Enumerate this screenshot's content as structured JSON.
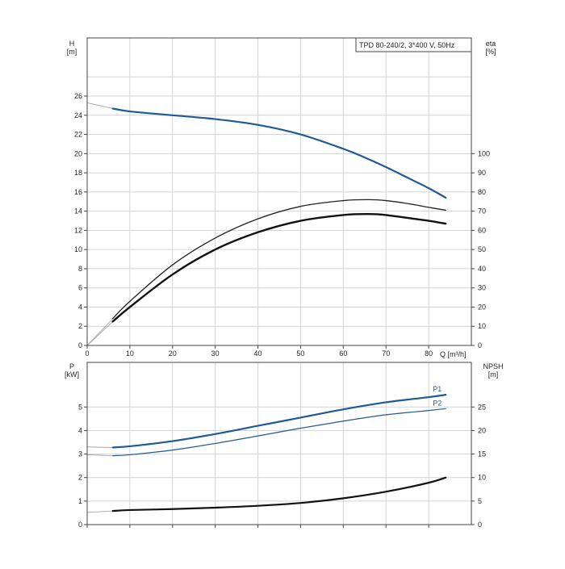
{
  "chart_data": [
    {
      "id": "head-efficiency",
      "type": "line",
      "title": "TPD 80-240/2, 3*400 V, 50Hz",
      "xlabel": "Q [m³/h]",
      "ylabel_left": [
        "H",
        "[m]"
      ],
      "ylabel_right": [
        "eta",
        "[%]"
      ],
      "xlim": [
        0,
        90
      ],
      "ylim_left": [
        0,
        30
      ],
      "ylim_right": [
        0,
        150
      ],
      "x_ticks": [
        0,
        10,
        20,
        30,
        40,
        50,
        60,
        70,
        80
      ],
      "y_ticks_left": [
        0,
        2,
        4,
        6,
        8,
        10,
        12,
        14,
        16,
        18,
        20,
        22,
        24,
        26
      ],
      "y_ticks_right": [
        0,
        10,
        20,
        30,
        40,
        50,
        60,
        70,
        80,
        90,
        100
      ],
      "grid": true,
      "series": [
        {
          "name": "",
          "axis": "left",
          "color": "#1f5a96",
          "width": 2.2,
          "extension": [
            [
              0,
              25.3
            ],
            [
              6,
              24.7
            ]
          ],
          "x": [
            6,
            10,
            20,
            30,
            40,
            50,
            60,
            65,
            70,
            75,
            80,
            84
          ],
          "y": [
            24.7,
            24.4,
            24.0,
            23.6,
            23.0,
            22.0,
            20.5,
            19.6,
            18.6,
            17.5,
            16.4,
            15.4
          ]
        },
        {
          "name": "",
          "axis": "right",
          "color": "#222222",
          "width": 1.3,
          "extension": [
            [
              0,
              0
            ],
            [
              6,
              14
            ]
          ],
          "x": [
            6,
            10,
            20,
            30,
            40,
            50,
            60,
            66,
            70,
            75,
            80,
            84
          ],
          "y": [
            14,
            23,
            42,
            56,
            66,
            72.5,
            75.5,
            76,
            75.5,
            74,
            72,
            70.5
          ]
        },
        {
          "name": "",
          "axis": "right",
          "color": "#111111",
          "width": 2.4,
          "extension": [
            [
              0,
              0
            ],
            [
              6,
              12.5
            ]
          ],
          "x": [
            6,
            10,
            20,
            30,
            40,
            50,
            60,
            66,
            70,
            75,
            80,
            84
          ],
          "y": [
            12.5,
            20,
            37,
            50,
            59,
            65,
            68,
            68.5,
            68,
            66.5,
            65,
            63.5
          ]
        }
      ]
    },
    {
      "id": "power-npsh",
      "type": "line",
      "xlim": [
        0,
        90
      ],
      "ylabel_left": [
        "P",
        "[kW]"
      ],
      "ylabel_right": [
        "NPSH",
        "[m]"
      ],
      "ylim_left": [
        0,
        7
      ],
      "ylim_right": [
        0,
        35
      ],
      "y_ticks_left": [
        0,
        1,
        2,
        3,
        4,
        5
      ],
      "y_ticks_right": [
        0,
        5,
        10,
        15,
        20,
        25
      ],
      "grid": true,
      "series": [
        {
          "name": "P1",
          "axis": "left",
          "color": "#1f5a96",
          "width": 2.2,
          "extension": [
            [
              0,
              3.3
            ],
            [
              6,
              3.28
            ]
          ],
          "x": [
            6,
            10,
            20,
            30,
            40,
            50,
            60,
            70,
            80,
            84
          ],
          "y": [
            3.28,
            3.33,
            3.55,
            3.85,
            4.2,
            4.55,
            4.9,
            5.2,
            5.42,
            5.52
          ]
        },
        {
          "name": "P2",
          "axis": "left",
          "color": "#1f5a96",
          "width": 1.2,
          "extension": [
            [
              0,
              2.97
            ],
            [
              6,
              2.93
            ]
          ],
          "x": [
            6,
            10,
            20,
            30,
            40,
            50,
            60,
            70,
            80,
            84
          ],
          "y": [
            2.93,
            2.97,
            3.17,
            3.45,
            3.77,
            4.1,
            4.4,
            4.67,
            4.85,
            4.93
          ]
        },
        {
          "name": "",
          "axis": "right",
          "color": "#111111",
          "width": 2.2,
          "extension": [
            [
              0,
              2.6
            ],
            [
              6,
              2.9
            ]
          ],
          "x": [
            6,
            10,
            20,
            30,
            40,
            50,
            60,
            70,
            80,
            84
          ],
          "y": [
            2.9,
            3.1,
            3.3,
            3.6,
            4.0,
            4.6,
            5.6,
            7.0,
            8.9,
            10.0
          ]
        }
      ]
    }
  ]
}
